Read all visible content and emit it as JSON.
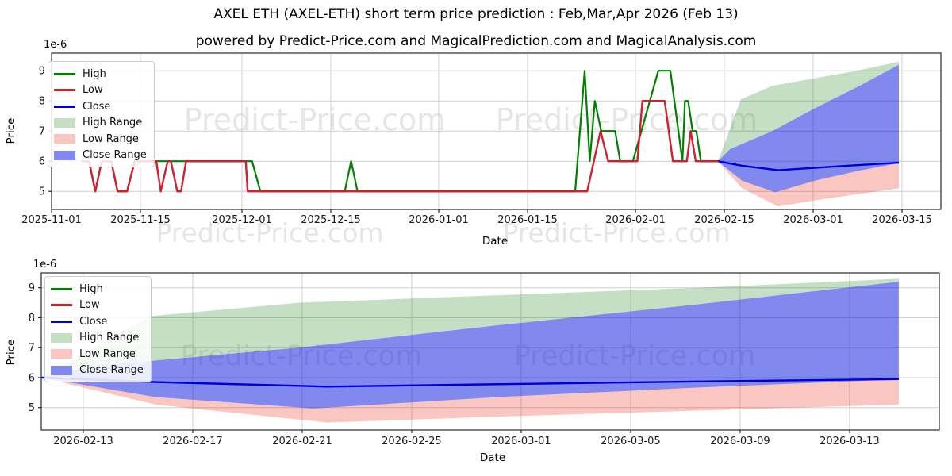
{
  "page": {
    "title": "AXEL ETH (AXEL-ETH) short term price prediction : Feb,Mar,Apr 2026 (Feb 13)",
    "subtitle": "powered by Predict-Price.com and MagicalPrediction.com and MagicalAnalysis.com",
    "watermark": "Predict-Price.com"
  },
  "colors": {
    "high": "#008000",
    "low": "#dd1f1f",
    "close": "#0000d6",
    "high_range_fill": "rgba(40,136,40,0.27)",
    "low_range_fill": "rgba(231,27,11,0.25)",
    "close_range_fill": "rgba(5,19,221,0.5)",
    "high_range_swatch": "#c5dfc5",
    "low_range_swatch": "#f9c6c2",
    "close_range_swatch": "#8289ee",
    "grid": "#cfcfcf",
    "spine": "#2a2a2a"
  },
  "legend": {
    "items": [
      {
        "label": "High",
        "swatch": "line",
        "color": "high"
      },
      {
        "label": "Low",
        "swatch": "line",
        "color": "low"
      },
      {
        "label": "Close",
        "swatch": "line",
        "color": "close"
      },
      {
        "label": "High Range",
        "swatch": "patch",
        "color": "high_range_swatch"
      },
      {
        "label": "Low Range",
        "swatch": "patch",
        "color": "low_range_swatch"
      },
      {
        "label": "Close Range",
        "swatch": "patch",
        "color": "close_range_swatch"
      }
    ]
  },
  "chart_data": [
    {
      "type": "line",
      "name": "historical-and-forecast",
      "ylabel": "Price",
      "xlabel": "Date",
      "offset_label": "1e-6",
      "ylim": [
        4.4,
        9.58
      ],
      "yticks": [
        5,
        6,
        7,
        8,
        9
      ],
      "xticks": [
        {
          "day": 0,
          "label": "2025-11-01"
        },
        {
          "day": 14,
          "label": "2025-11-15"
        },
        {
          "day": 30,
          "label": "2025-12-01"
        },
        {
          "day": 44,
          "label": "2025-12-15"
        },
        {
          "day": 61,
          "label": "2026-01-01"
        },
        {
          "day": 75,
          "label": "2026-01-15"
        },
        {
          "day": 92,
          "label": "2026-02-01"
        },
        {
          "day": 106,
          "label": "2026-02-15"
        },
        {
          "day": 120,
          "label": "2026-03-01"
        },
        {
          "day": 134,
          "label": "2026-03-15"
        }
      ],
      "series": {
        "high": [
          [
            4.7,
            6
          ],
          [
            5.9,
            6
          ],
          [
            6.9,
            5
          ],
          [
            7.9,
            6
          ],
          [
            9.4,
            6
          ],
          [
            10.4,
            5
          ],
          [
            11.9,
            5
          ],
          [
            13.1,
            6
          ],
          [
            31.6,
            6
          ],
          [
            32.9,
            5
          ],
          [
            46.2,
            5
          ],
          [
            47.2,
            6
          ],
          [
            48.2,
            5
          ],
          [
            82.5,
            5
          ],
          [
            84,
            9
          ],
          [
            84.8,
            6
          ],
          [
            85.6,
            8
          ],
          [
            86.6,
            7
          ],
          [
            88.8,
            7
          ],
          [
            89.6,
            6
          ],
          [
            91.6,
            6
          ],
          [
            95.6,
            9
          ],
          [
            97.5,
            9
          ],
          [
            99.4,
            6
          ],
          [
            99.8,
            8
          ],
          [
            100.3,
            8
          ],
          [
            101,
            7
          ],
          [
            101.6,
            7
          ],
          [
            102.3,
            6
          ],
          [
            105,
            6
          ]
        ],
        "low": [
          [
            4.7,
            6
          ],
          [
            5.9,
            6
          ],
          [
            6.9,
            5
          ],
          [
            7.9,
            6
          ],
          [
            9.4,
            6
          ],
          [
            10.4,
            5
          ],
          [
            11.9,
            5
          ],
          [
            13.1,
            6
          ],
          [
            16.5,
            6
          ],
          [
            17.2,
            5
          ],
          [
            18.3,
            6
          ],
          [
            18.8,
            6
          ],
          [
            19.8,
            5
          ],
          [
            20.4,
            5
          ],
          [
            21.2,
            6
          ],
          [
            30.6,
            6
          ],
          [
            30.9,
            5
          ],
          [
            84.4,
            5
          ],
          [
            86.5,
            7
          ],
          [
            87.7,
            6
          ],
          [
            92.3,
            6
          ],
          [
            93.1,
            8
          ],
          [
            96.6,
            8
          ],
          [
            97.9,
            6
          ],
          [
            100.1,
            6
          ],
          [
            100.7,
            7
          ],
          [
            101.5,
            6
          ],
          [
            105,
            6
          ]
        ],
        "close": [
          [
            4.7,
            6
          ],
          [
            5.9,
            6
          ],
          [
            6.9,
            5
          ],
          [
            7.9,
            6
          ],
          [
            9.4,
            6
          ],
          [
            10.4,
            5
          ],
          [
            11.9,
            5
          ],
          [
            13.1,
            6
          ],
          [
            16.5,
            6
          ],
          [
            17.2,
            5
          ],
          [
            18.3,
            6
          ],
          [
            18.8,
            6
          ],
          [
            19.8,
            5
          ],
          [
            20.4,
            5
          ],
          [
            21.2,
            6
          ],
          [
            30.6,
            6
          ],
          [
            30.9,
            5
          ],
          [
            84.4,
            5
          ],
          [
            86.5,
            7
          ],
          [
            87.7,
            6
          ],
          [
            92.3,
            6
          ],
          [
            93.1,
            8
          ],
          [
            96.6,
            8
          ],
          [
            97.9,
            6
          ],
          [
            100.1,
            6
          ],
          [
            100.7,
            7
          ],
          [
            101.5,
            6
          ],
          [
            105,
            6
          ]
        ]
      },
      "forecast_start_label": "2026-02-13",
      "forecast": {
        "high_range_upper": [
          [
            0,
            6
          ],
          [
            3.8,
            8.05
          ],
          [
            9,
            8.5
          ],
          [
            16,
            8.75
          ],
          [
            23,
            9.0
          ],
          [
            30,
            9.3
          ]
        ],
        "close_range_upper": [
          [
            0,
            6
          ],
          [
            2,
            6.4
          ],
          [
            9,
            7.0
          ],
          [
            16,
            7.75
          ],
          [
            23,
            8.45
          ],
          [
            30,
            9.2
          ]
        ],
        "close": [
          [
            0,
            6
          ],
          [
            4,
            5.85
          ],
          [
            10,
            5.7
          ],
          [
            16,
            5.78
          ],
          [
            23,
            5.87
          ],
          [
            30,
            5.95
          ]
        ],
        "close_range_lower": [
          [
            0,
            6
          ],
          [
            4,
            5.35
          ],
          [
            9.5,
            4.97
          ],
          [
            16,
            5.35
          ],
          [
            23,
            5.67
          ],
          [
            30,
            5.94
          ]
        ],
        "low_range_lower": [
          [
            0,
            6
          ],
          [
            4,
            5.1
          ],
          [
            10,
            4.5
          ],
          [
            16,
            4.7
          ],
          [
            23,
            4.9
          ],
          [
            30,
            5.1
          ]
        ]
      }
    },
    {
      "type": "area",
      "name": "forecast-detail",
      "ylabel": "Price",
      "xlabel": "Date",
      "offset_label": "1e-6",
      "ylim": [
        4.25,
        9.5
      ],
      "yticks": [
        5,
        6,
        7,
        8,
        9
      ],
      "xticks": [
        {
          "day": 1.47,
          "label": "2026-02-13"
        },
        {
          "day": 5.3,
          "label": "2026-02-17"
        },
        {
          "day": 9.13,
          "label": "2026-02-21"
        },
        {
          "day": 12.96,
          "label": "2026-02-25"
        },
        {
          "day": 16.79,
          "label": "2026-03-01"
        },
        {
          "day": 20.62,
          "label": "2026-03-05"
        },
        {
          "day": 24.45,
          "label": "2026-03-09"
        },
        {
          "day": 28.28,
          "label": "2026-03-13"
        }
      ],
      "forecast": {
        "high_range_upper": [
          [
            0,
            6
          ],
          [
            3.8,
            8.05
          ],
          [
            9,
            8.5
          ],
          [
            16,
            8.75
          ],
          [
            23,
            9.0
          ],
          [
            30,
            9.3
          ]
        ],
        "close_range_upper": [
          [
            0,
            6
          ],
          [
            2,
            6.4
          ],
          [
            9,
            7.0
          ],
          [
            16,
            7.75
          ],
          [
            23,
            8.45
          ],
          [
            30,
            9.2
          ]
        ],
        "close": [
          [
            0,
            6
          ],
          [
            4,
            5.85
          ],
          [
            10,
            5.7
          ],
          [
            16,
            5.78
          ],
          [
            23,
            5.87
          ],
          [
            30,
            5.95
          ]
        ],
        "close_range_lower": [
          [
            0,
            6
          ],
          [
            4,
            5.35
          ],
          [
            9.5,
            4.97
          ],
          [
            16,
            5.35
          ],
          [
            23,
            5.67
          ],
          [
            30,
            5.94
          ]
        ],
        "low_range_lower": [
          [
            0,
            6
          ],
          [
            4,
            5.1
          ],
          [
            10,
            4.5
          ],
          [
            16,
            4.7
          ],
          [
            23,
            4.9
          ],
          [
            30,
            5.1
          ]
        ]
      }
    }
  ]
}
